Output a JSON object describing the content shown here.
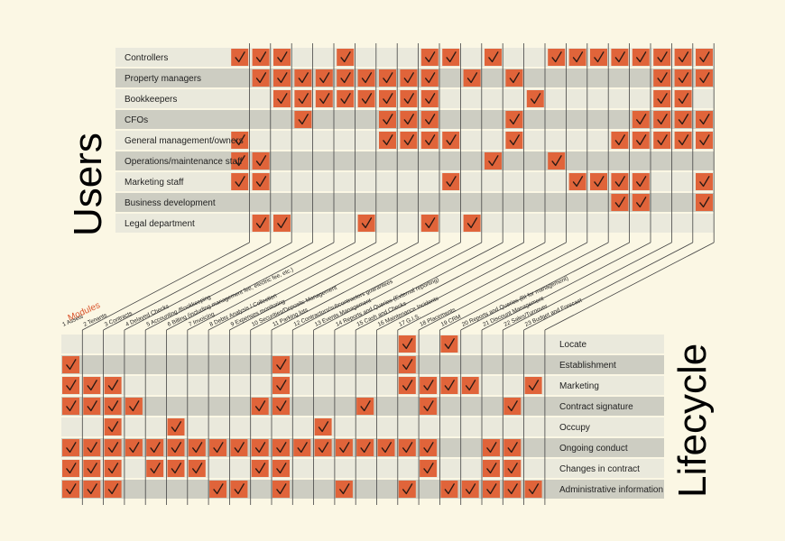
{
  "title_users": "Users",
  "title_lifecycle": "Lifecycle",
  "modules_heading": "Modules",
  "colors": {
    "background": "#fbf7e4",
    "row_light": "#eae9dc",
    "row_dark": "#cdcdc2",
    "check_fill": "#e0643a",
    "line": "#444444"
  },
  "modules": [
    "1  Assets",
    "2  Tenants",
    "3  Contracts",
    "4  Delayed Checks",
    "5  Accounting /Bookkeeping",
    "6  Billing (including management fee, electric fee, etc.)",
    "7  Invoicing",
    "8  Debts Analysis / Collection",
    "9  Expenses monitoring",
    "10  Securities/Deposits Management",
    "11  Parking lots",
    "12  Contractors/subcontractors guarantees",
    "13  Events Management",
    "14  Reports and Queries (External reporting)",
    "15  Cash and Checks",
    "16  Maintenance Incidents",
    "17  G.I.S.",
    "18  Placements",
    "19  CRM",
    "20  Reports and Queries (BI for management)",
    "21  Discount Management",
    "22  Sales/Turnover",
    "23  Budget and Forecast"
  ],
  "users": [
    {
      "name": "Controllers",
      "checks": [
        1,
        2,
        3,
        6,
        10,
        11,
        13,
        16,
        17,
        18,
        19,
        20,
        21,
        22,
        23
      ]
    },
    {
      "name": "Property managers",
      "checks": [
        2,
        3,
        4,
        5,
        6,
        7,
        8,
        9,
        10,
        12,
        14,
        21,
        22,
        23
      ]
    },
    {
      "name": "Bookkeepers",
      "checks": [
        3,
        4,
        5,
        6,
        7,
        8,
        9,
        10,
        15,
        21,
        22
      ]
    },
    {
      "name": "CFOs",
      "checks": [
        4,
        8,
        9,
        10,
        14,
        20,
        21,
        22,
        23
      ]
    },
    {
      "name": "General management/owners",
      "checks": [
        1,
        8,
        9,
        10,
        11,
        14,
        19,
        20,
        21,
        22,
        23
      ]
    },
    {
      "name": "Operations/maintenance staff",
      "checks": [
        1,
        2,
        13,
        16
      ]
    },
    {
      "name": "Marketing staff",
      "checks": [
        1,
        2,
        11,
        17,
        18,
        19,
        20,
        23
      ]
    },
    {
      "name": "Business development",
      "checks": [
        19,
        20,
        23
      ]
    },
    {
      "name": "Legal department",
      "checks": [
        2,
        3,
        7,
        10,
        12
      ]
    }
  ],
  "lifecycle": [
    {
      "name": "Locate",
      "checks": [
        17,
        19
      ]
    },
    {
      "name": "Establishment",
      "checks": [
        1,
        11,
        17
      ]
    },
    {
      "name": "Marketing",
      "checks": [
        1,
        2,
        3,
        11,
        17,
        18,
        19,
        20,
        23
      ]
    },
    {
      "name": "Contract signature",
      "checks": [
        1,
        2,
        3,
        4,
        10,
        11,
        15,
        18,
        22
      ]
    },
    {
      "name": "Occupy",
      "checks": [
        3,
        6,
        13
      ]
    },
    {
      "name": "Ongoing conduct",
      "checks": [
        1,
        2,
        3,
        4,
        5,
        6,
        7,
        8,
        9,
        10,
        11,
        12,
        13,
        14,
        15,
        16,
        17,
        18,
        21,
        22
      ]
    },
    {
      "name": "Changes in contract",
      "checks": [
        1,
        2,
        3,
        5,
        6,
        7,
        10,
        11,
        18,
        21,
        22
      ]
    },
    {
      "name": "Administrative information",
      "checks": [
        1,
        2,
        3,
        8,
        9,
        11,
        14,
        17,
        19,
        20,
        21,
        22,
        23
      ]
    }
  ]
}
